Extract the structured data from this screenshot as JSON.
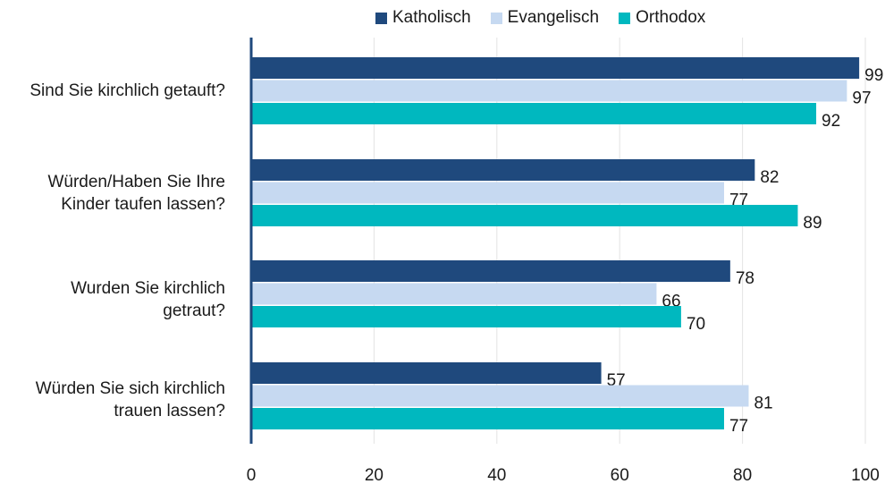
{
  "chart_data": {
    "type": "bar",
    "orientation": "horizontal",
    "categories": [
      "Sind Sie kirchlich getauft?",
      "Würden/Haben Sie Ihre Kinder taufen lassen?",
      "Wurden Sie kirchlich getraut?",
      "Würden Sie sich kirchlich trauen lassen?"
    ],
    "category_lines": [
      [
        "Sind Sie kirchlich getauft?"
      ],
      [
        "Würden/Haben Sie Ihre",
        "Kinder taufen lassen?"
      ],
      [
        "Wurden Sie kirchlich",
        "getraut?"
      ],
      [
        "Würden Sie sich kirchlich",
        "trauen lassen?"
      ]
    ],
    "series": [
      {
        "name": "Katholisch",
        "color": "#1f497d",
        "values": [
          99,
          82,
          78,
          57
        ]
      },
      {
        "name": "Evangelisch",
        "color": "#c6d9f1",
        "values": [
          97,
          77,
          66,
          81
        ]
      },
      {
        "name": "Orthodox",
        "color": "#00b8bf",
        "values": [
          92,
          89,
          70,
          77
        ]
      }
    ],
    "xlim": [
      0,
      100
    ],
    "xticks": [
      0,
      20,
      40,
      60,
      80,
      100
    ],
    "grid": true,
    "legend_position": "top"
  }
}
